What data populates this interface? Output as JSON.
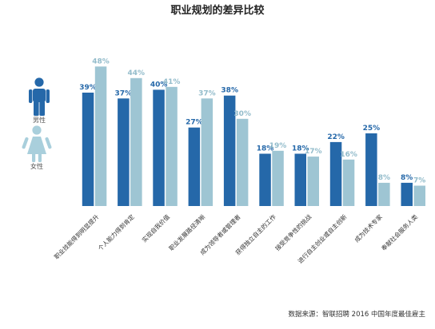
{
  "chart_data": {
    "type": "bar",
    "title": "职业规划的差异比较",
    "categories": [
      "职业技能得到明显提升",
      "个人能力得到肯定",
      "实现自我价值",
      "职业发展路径清晰",
      "成为领导者或管理者",
      "获得独立自主的工作",
      "接受竞争性的挑战",
      "进行自主创业或自主创新",
      "成为技术专家",
      "奉献社会服务人类"
    ],
    "series": [
      {
        "name": "男性",
        "color": "#2568a9",
        "values": [
          39,
          37,
          40,
          27,
          38,
          18,
          18,
          22,
          25,
          8
        ],
        "labels": [
          "39%",
          "37%",
          "40%",
          "27%",
          "38%",
          "18%",
          "18%",
          "22%",
          "25%",
          "8%"
        ]
      },
      {
        "name": "女性",
        "color": "#9ec5d3",
        "values": [
          48,
          44,
          41,
          37,
          30,
          19,
          17,
          16,
          8,
          7
        ],
        "labels": [
          "48%",
          "44%",
          "41%",
          "37%",
          "30%",
          "19%",
          "17%",
          "16%",
          "8%",
          "7%"
        ]
      }
    ],
    "ylim": [
      0,
      50
    ],
    "grid": false,
    "legend_position": "left"
  },
  "source": "数据来源：智联招聘 2016 中国年度最佳雇主"
}
